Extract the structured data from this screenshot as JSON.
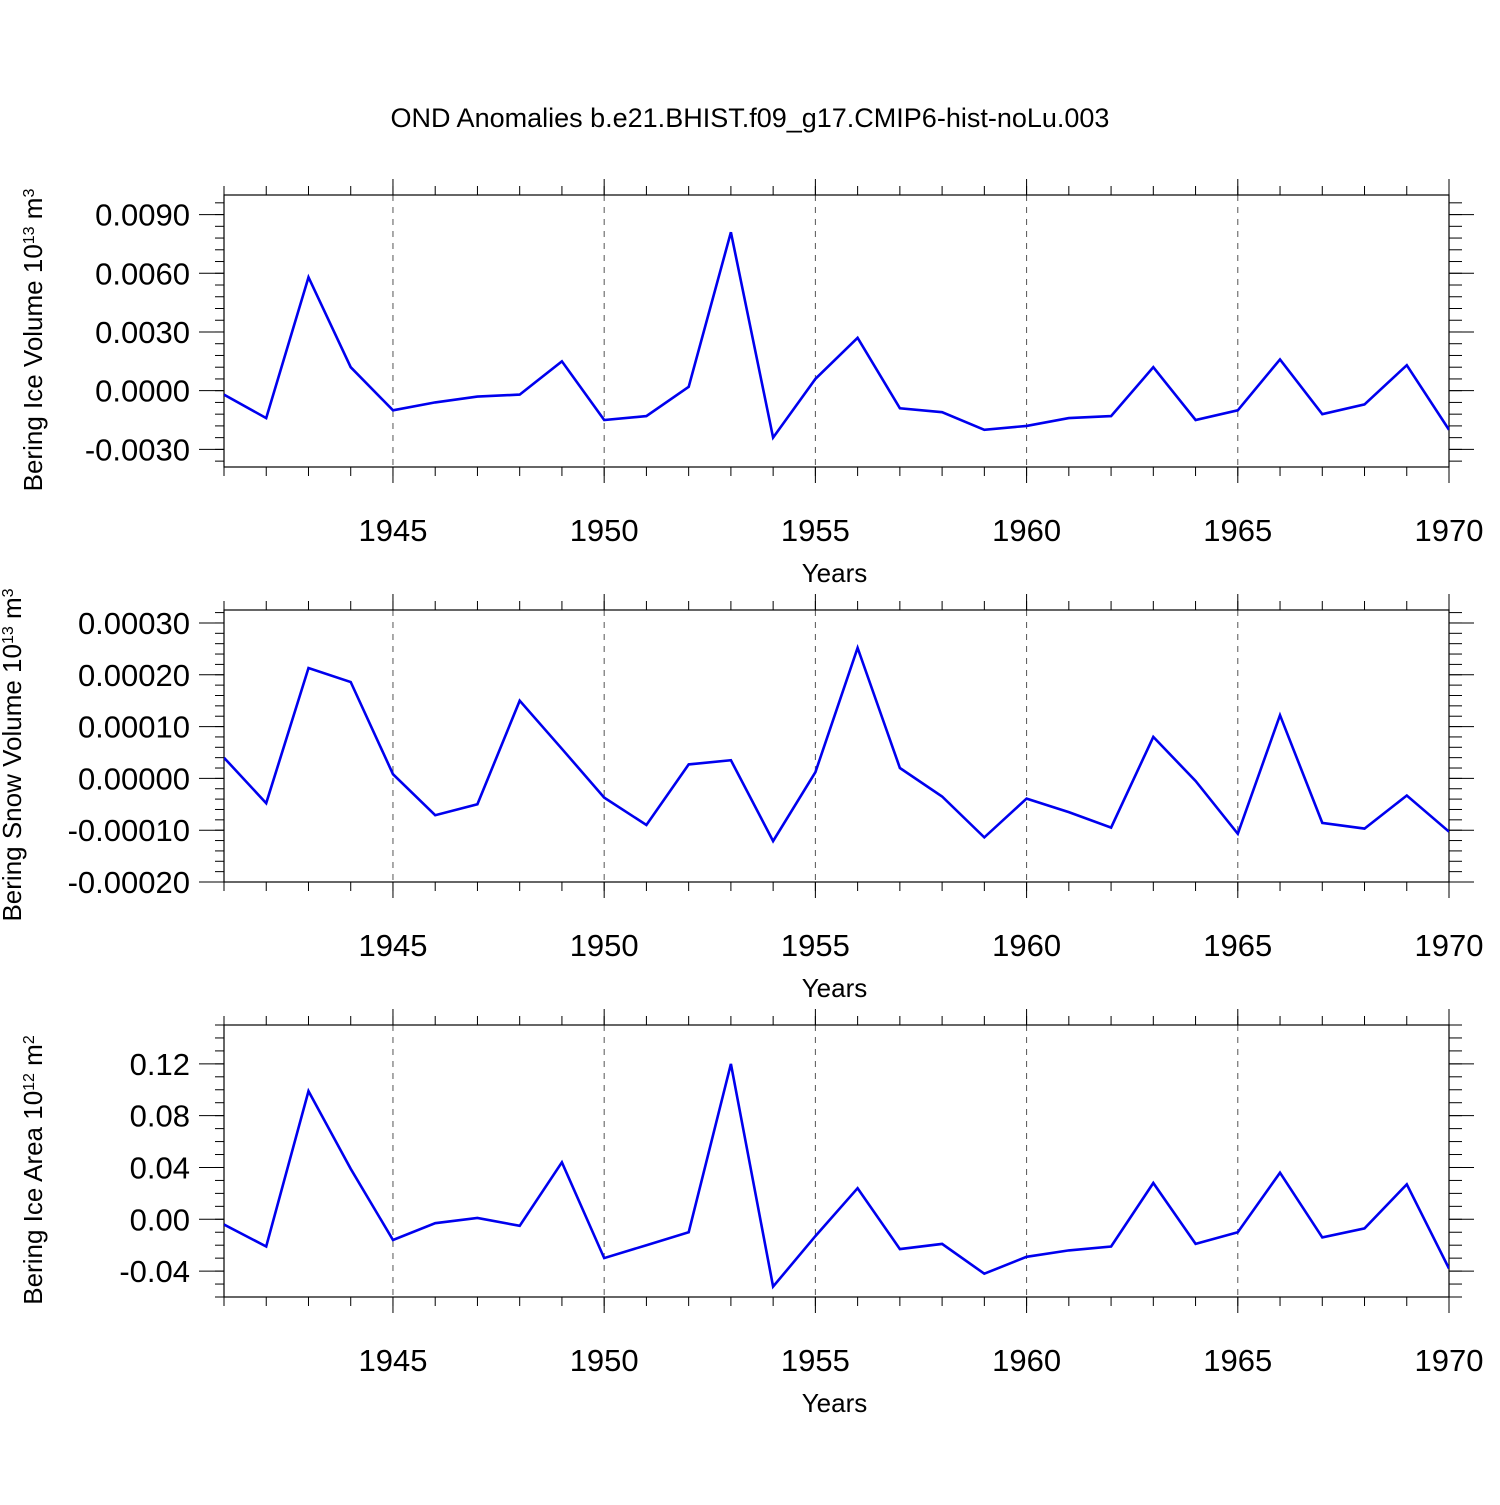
{
  "title": "OND Anomalies b.e21.BHIST.f09_g17.CMIP6-hist-noLu.003",
  "colors": {
    "line": "#0000ee",
    "axis": "#000000",
    "grid": "#555555"
  },
  "chart_data": [
    {
      "type": "line",
      "title": "",
      "xlabel": "Years",
      "ylabel": "Bering Ice Volume 10",
      "ylabel_sup": "13",
      "ylabel_unit": " m",
      "ylabel_unit_sup": "3",
      "xlim": [
        1941,
        1970
      ],
      "ylim": [
        -0.0039,
        0.01
      ],
      "yticks": [
        -0.003,
        0.0,
        0.003,
        0.006,
        0.009
      ],
      "ytick_labels": [
        "-0.0030",
        "0.0000",
        "0.0030",
        "0.0060",
        "0.0090"
      ],
      "yminor_step": 0.0006,
      "xticks": [
        1945,
        1950,
        1955,
        1960,
        1965,
        1970
      ],
      "xtick_labels": [
        "1945",
        "1950",
        "1955",
        "1960",
        "1965",
        "1970"
      ],
      "grid": "dashed vertical at major x ticks",
      "x": [
        1941,
        1942,
        1943,
        1944,
        1945,
        1946,
        1947,
        1948,
        1949,
        1950,
        1951,
        1952,
        1953,
        1954,
        1955,
        1956,
        1957,
        1958,
        1959,
        1960,
        1961,
        1962,
        1963,
        1964,
        1965,
        1966,
        1967,
        1968,
        1969,
        1970
      ],
      "series": [
        {
          "name": "Bering Ice Volume",
          "values": [
            -0.0002,
            -0.0014,
            0.0058,
            0.0012,
            -0.001,
            -0.0006,
            -0.0003,
            -0.0002,
            0.0015,
            -0.0015,
            -0.0013,
            0.0002,
            0.0081,
            -0.0024,
            0.0006,
            0.0027,
            -0.0009,
            -0.0011,
            -0.002,
            -0.0018,
            -0.0014,
            -0.0013,
            0.0012,
            -0.0015,
            -0.001,
            0.0016,
            -0.0012,
            -0.0007,
            0.0013,
            -0.002
          ]
        }
      ]
    },
    {
      "type": "line",
      "title": "",
      "xlabel": "Years",
      "ylabel": "Bering Snow Volume 10",
      "ylabel_sup": "13",
      "ylabel_unit": " m",
      "ylabel_unit_sup": "3",
      "xlim": [
        1941,
        1970
      ],
      "ylim": [
        -0.0002,
        0.000325
      ],
      "yticks": [
        -0.0002,
        -0.0001,
        0.0,
        0.0001,
        0.0002,
        0.0003
      ],
      "ytick_labels": [
        "-0.00020",
        "-0.00010",
        "0.00000",
        "0.00010",
        "0.00020",
        "0.00030"
      ],
      "yminor_step": 2e-05,
      "xticks": [
        1945,
        1950,
        1955,
        1960,
        1965,
        1970
      ],
      "xtick_labels": [
        "1945",
        "1950",
        "1955",
        "1960",
        "1965",
        "1970"
      ],
      "grid": "dashed vertical at major x ticks",
      "x": [
        1941,
        1942,
        1943,
        1944,
        1945,
        1946,
        1947,
        1948,
        1949,
        1950,
        1951,
        1952,
        1953,
        1954,
        1955,
        1956,
        1957,
        1958,
        1959,
        1960,
        1961,
        1962,
        1963,
        1964,
        1965,
        1966,
        1967,
        1968,
        1969,
        1970
      ],
      "series": [
        {
          "name": "Bering Snow Volume",
          "values": [
            4e-05,
            -4.8e-05,
            0.000213,
            0.000186,
            8e-06,
            -7.1e-05,
            -5e-05,
            0.00015,
            5.7e-05,
            -3.7e-05,
            -9e-05,
            2.7e-05,
            3.5e-05,
            -0.000121,
            1.2e-05,
            0.000252,
            2e-05,
            -3.5e-05,
            -0.000114,
            -3.9e-05,
            -6.5e-05,
            -9.5e-05,
            8e-05,
            -5e-06,
            -0.000107,
            0.000122,
            -8.6e-05,
            -9.7e-05,
            -3.3e-05,
            -0.000103
          ]
        }
      ]
    },
    {
      "type": "line",
      "title": "",
      "xlabel": "Years",
      "ylabel": "Bering Ice Area 10",
      "ylabel_sup": "12",
      "ylabel_unit": " m",
      "ylabel_unit_sup": "2",
      "xlim": [
        1941,
        1970
      ],
      "ylim": [
        -0.06,
        0.15
      ],
      "yticks": [
        -0.04,
        0.0,
        0.04,
        0.08,
        0.12
      ],
      "ytick_labels": [
        "-0.04",
        "0.00",
        "0.04",
        "0.08",
        "0.12"
      ],
      "yminor_step": 0.01,
      "xticks": [
        1945,
        1950,
        1955,
        1960,
        1965,
        1970
      ],
      "xtick_labels": [
        "1945",
        "1950",
        "1955",
        "1960",
        "1965",
        "1970"
      ],
      "grid": "dashed vertical at major x ticks",
      "x": [
        1941,
        1942,
        1943,
        1944,
        1945,
        1946,
        1947,
        1948,
        1949,
        1950,
        1951,
        1952,
        1953,
        1954,
        1955,
        1956,
        1957,
        1958,
        1959,
        1960,
        1961,
        1962,
        1963,
        1964,
        1965,
        1966,
        1967,
        1968,
        1969,
        1970
      ],
      "series": [
        {
          "name": "Bering Ice Area",
          "values": [
            -0.004,
            -0.021,
            0.099,
            0.039,
            -0.016,
            -0.003,
            0.001,
            -0.005,
            0.044,
            -0.03,
            -0.02,
            -0.01,
            0.12,
            -0.052,
            -0.013,
            0.024,
            -0.023,
            -0.019,
            -0.042,
            -0.029,
            -0.024,
            -0.021,
            0.028,
            -0.019,
            -0.01,
            0.036,
            -0.014,
            -0.007,
            0.027,
            -0.038
          ]
        }
      ]
    }
  ]
}
